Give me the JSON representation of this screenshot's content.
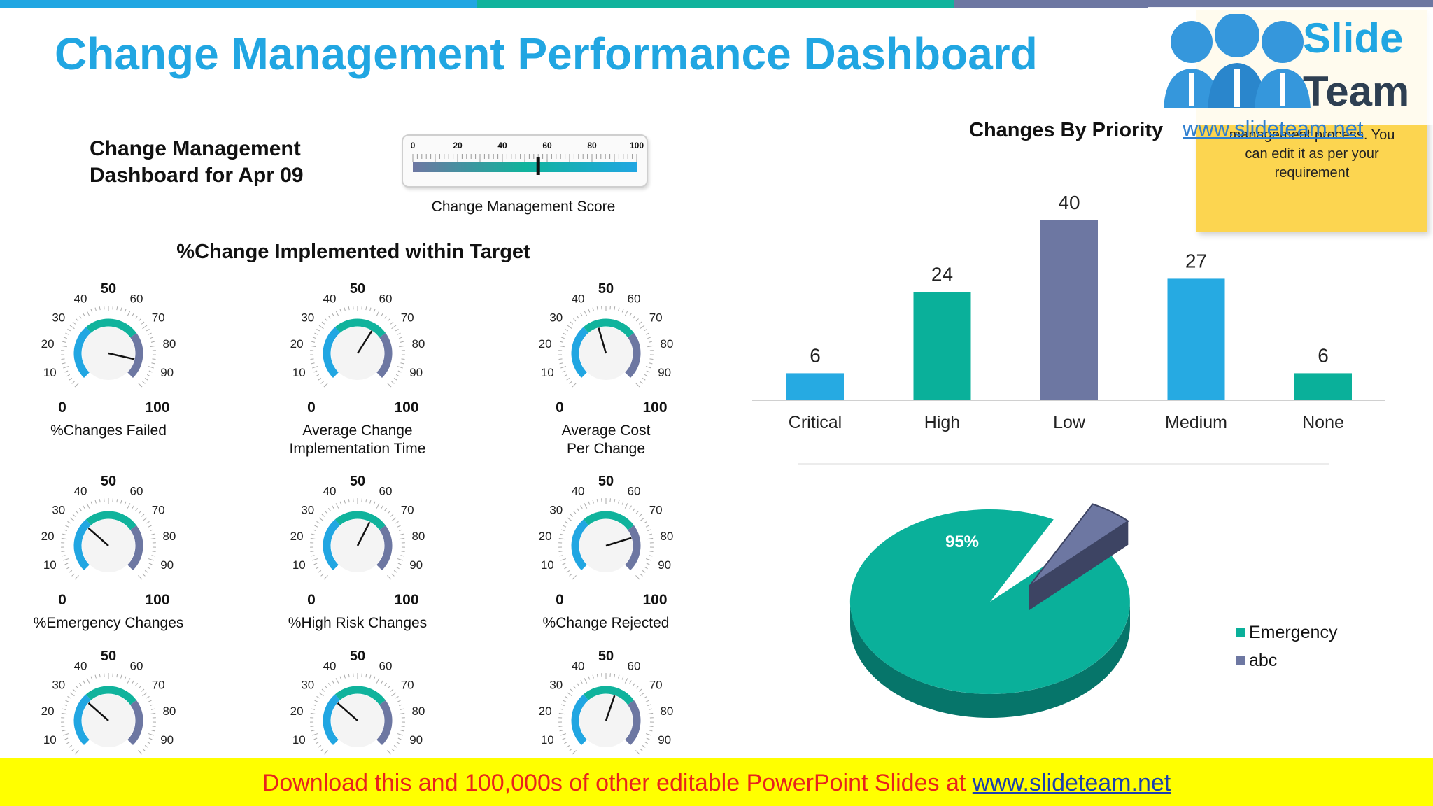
{
  "title": "Change Management Performance Dashboard",
  "subtitle": [
    "Change Management",
    "Dashboard for Apr 09"
  ],
  "score": {
    "caption": "Change Management Score",
    "ticks": [
      "0",
      "20",
      "40",
      "60",
      "80",
      "100"
    ],
    "value": 56
  },
  "section_title": "%Change Implemented within Target",
  "gauge_scale": {
    "min_label": "0",
    "max_label": "100",
    "mid_label": "50",
    "small_labels": [
      "10",
      "20",
      "30",
      "40",
      "60",
      "70",
      "80",
      "90"
    ]
  },
  "gauges": [
    {
      "label": [
        "%Changes Failed"
      ],
      "value": 88
    },
    {
      "label": [
        "Average Change",
        "Implementation Time"
      ],
      "value": 62
    },
    {
      "label": [
        "Average Cost",
        "Per Change"
      ],
      "value": 44
    },
    {
      "label": [
        "%Emergency Changes"
      ],
      "value": 32
    },
    {
      "label": [
        "%High Risk Changes"
      ],
      "value": 60
    },
    {
      "label": [
        "%Change Rejected"
      ],
      "value": 77
    },
    {
      "label": [],
      "value": 32
    },
    {
      "label": [],
      "value": 32
    },
    {
      "label": [],
      "value": 57
    }
  ],
  "chart_data": [
    {
      "type": "bar",
      "title": "Changes By Priority",
      "categories": [
        "Critical",
        "High",
        "Low",
        "Medium",
        "None"
      ],
      "values": [
        6,
        24,
        40,
        27,
        6
      ],
      "colors": [
        "#26aae2",
        "#0ab09a",
        "#6d77a2",
        "#26aae2",
        "#0ab09a"
      ],
      "data_labels": [
        "6",
        "24",
        "40",
        "27",
        "6"
      ],
      "grid": false
    },
    {
      "type": "pie",
      "categories": [
        "Emergency",
        "abc"
      ],
      "values": [
        95,
        5
      ],
      "data_labels": [
        "95%",
        "5%"
      ],
      "colors": [
        "#0ab09a",
        "#6d77a2"
      ],
      "legend_position": "right"
    }
  ],
  "logo": {
    "name_line1": "Slide",
    "name_line2": "Team",
    "url": "www.slideteam.net"
  },
  "note": {
    "text": [
      "management process. You",
      "can edit it as per your",
      "requirement"
    ]
  },
  "footer": {
    "text": "Download this and 100,000s of other editable PowerPoint Slides at ",
    "link": "www.slideteam.net"
  },
  "colors": {
    "blue": "#21a6e2",
    "teal": "#0ab09a",
    "slate": "#6d77a2",
    "footer_bg": "#ffff00",
    "footer_text": "#e8231c"
  }
}
